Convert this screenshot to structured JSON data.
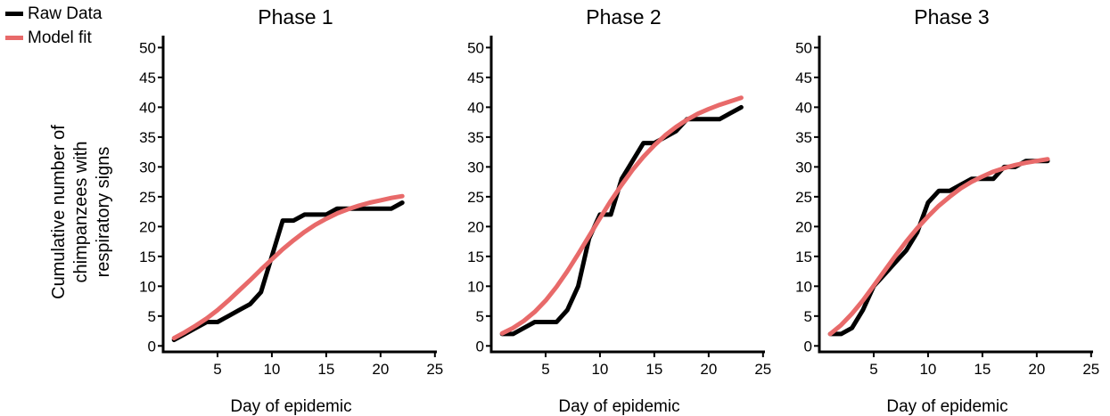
{
  "legend": {
    "items": [
      {
        "label": "Raw Data",
        "color": "#000000"
      },
      {
        "label": "Model fit",
        "color": "#e86a6a"
      }
    ]
  },
  "ylabel_lines": [
    "Cumulative number of",
    "chimpanzees with",
    "respiratory signs"
  ],
  "chart_data": [
    {
      "type": "line",
      "title": "Phase 1",
      "xlabel": "Day of epidemic",
      "xlim": [
        0,
        26
      ],
      "ylim": [
        -1,
        52
      ],
      "xticks": [
        5,
        10,
        15,
        20,
        25
      ],
      "yticks": [
        0,
        5,
        10,
        15,
        20,
        25,
        30,
        35,
        40,
        45,
        50
      ],
      "grid": false,
      "series": [
        {
          "name": "Raw Data",
          "color": "#000000",
          "x": [
            1,
            2,
            3,
            4,
            5,
            6,
            7,
            8,
            9,
            10,
            11,
            12,
            13,
            14,
            15,
            16,
            17,
            18,
            19,
            20,
            21,
            22
          ],
          "y": [
            1,
            2,
            3,
            4,
            4,
            5,
            6,
            7,
            9,
            15,
            21,
            21,
            22,
            22,
            22,
            23,
            23,
            23,
            23,
            23,
            23,
            24
          ]
        },
        {
          "name": "Model fit",
          "color": "#e86a6a",
          "x": [
            1,
            2,
            3,
            4,
            5,
            6,
            7,
            8,
            9,
            10,
            11,
            12,
            13,
            14,
            15,
            16,
            17,
            18,
            19,
            20,
            21,
            22
          ],
          "y": [
            1.3,
            2.3,
            3.4,
            4.6,
            6.0,
            7.6,
            9.3,
            11.0,
            12.8,
            14.5,
            16.2,
            17.7,
            19.1,
            20.3,
            21.3,
            22.2,
            22.9,
            23.5,
            24.0,
            24.4,
            24.8,
            25.1
          ]
        }
      ]
    },
    {
      "type": "line",
      "title": "Phase 2",
      "xlabel": "Day of epidemic",
      "xlim": [
        0,
        26
      ],
      "ylim": [
        -1,
        52
      ],
      "xticks": [
        5,
        10,
        15,
        20,
        25
      ],
      "yticks": [
        0,
        5,
        10,
        15,
        20,
        25,
        30,
        35,
        40,
        45,
        50
      ],
      "grid": false,
      "series": [
        {
          "name": "Raw Data",
          "color": "#000000",
          "x": [
            1,
            2,
            3,
            4,
            5,
            6,
            7,
            8,
            9,
            10,
            11,
            12,
            13,
            14,
            15,
            16,
            17,
            18,
            19,
            20,
            21,
            22,
            23
          ],
          "y": [
            2,
            2,
            3,
            4,
            4,
            4,
            6,
            10,
            18,
            22,
            22,
            28,
            31,
            34,
            34,
            35,
            36,
            38,
            38,
            38,
            38,
            39,
            40
          ]
        },
        {
          "name": "Model fit",
          "color": "#e86a6a",
          "x": [
            1,
            2,
            3,
            4,
            5,
            6,
            7,
            8,
            9,
            10,
            11,
            12,
            13,
            14,
            15,
            16,
            17,
            18,
            19,
            20,
            21,
            22,
            23
          ],
          "y": [
            2.1,
            3.0,
            4.2,
            5.7,
            7.6,
            9.9,
            12.5,
            15.4,
            18.4,
            21.4,
            24.3,
            27.0,
            29.5,
            31.7,
            33.6,
            35.3,
            36.7,
            37.9,
            38.9,
            39.7,
            40.4,
            41.0,
            41.6
          ]
        }
      ]
    },
    {
      "type": "line",
      "title": "Phase 3",
      "xlabel": "Day of epidemic",
      "xlim": [
        0,
        26
      ],
      "ylim": [
        -1,
        52
      ],
      "xticks": [
        5,
        10,
        15,
        20,
        25
      ],
      "yticks": [
        0,
        5,
        10,
        15,
        20,
        25,
        30,
        35,
        40,
        45,
        50
      ],
      "grid": false,
      "series": [
        {
          "name": "Raw Data",
          "color": "#000000",
          "x": [
            1,
            2,
            3,
            4,
            5,
            6,
            7,
            8,
            9,
            10,
            11,
            12,
            13,
            14,
            15,
            16,
            17,
            18,
            19,
            20,
            21
          ],
          "y": [
            2,
            2,
            3,
            6,
            10,
            12,
            14,
            16,
            19,
            24,
            26,
            26,
            27,
            28,
            28,
            28,
            30,
            30,
            31,
            31,
            31
          ]
        },
        {
          "name": "Model fit",
          "color": "#e86a6a",
          "x": [
            1,
            2,
            3,
            4,
            5,
            6,
            7,
            8,
            9,
            10,
            11,
            12,
            13,
            14,
            15,
            16,
            17,
            18,
            19,
            20,
            21
          ],
          "y": [
            2.0,
            3.5,
            5.4,
            7.6,
            10.1,
            12.6,
            15.1,
            17.5,
            19.7,
            21.7,
            23.5,
            25.0,
            26.4,
            27.5,
            28.4,
            29.2,
            29.8,
            30.3,
            30.7,
            31.0,
            31.3
          ]
        }
      ]
    }
  ]
}
